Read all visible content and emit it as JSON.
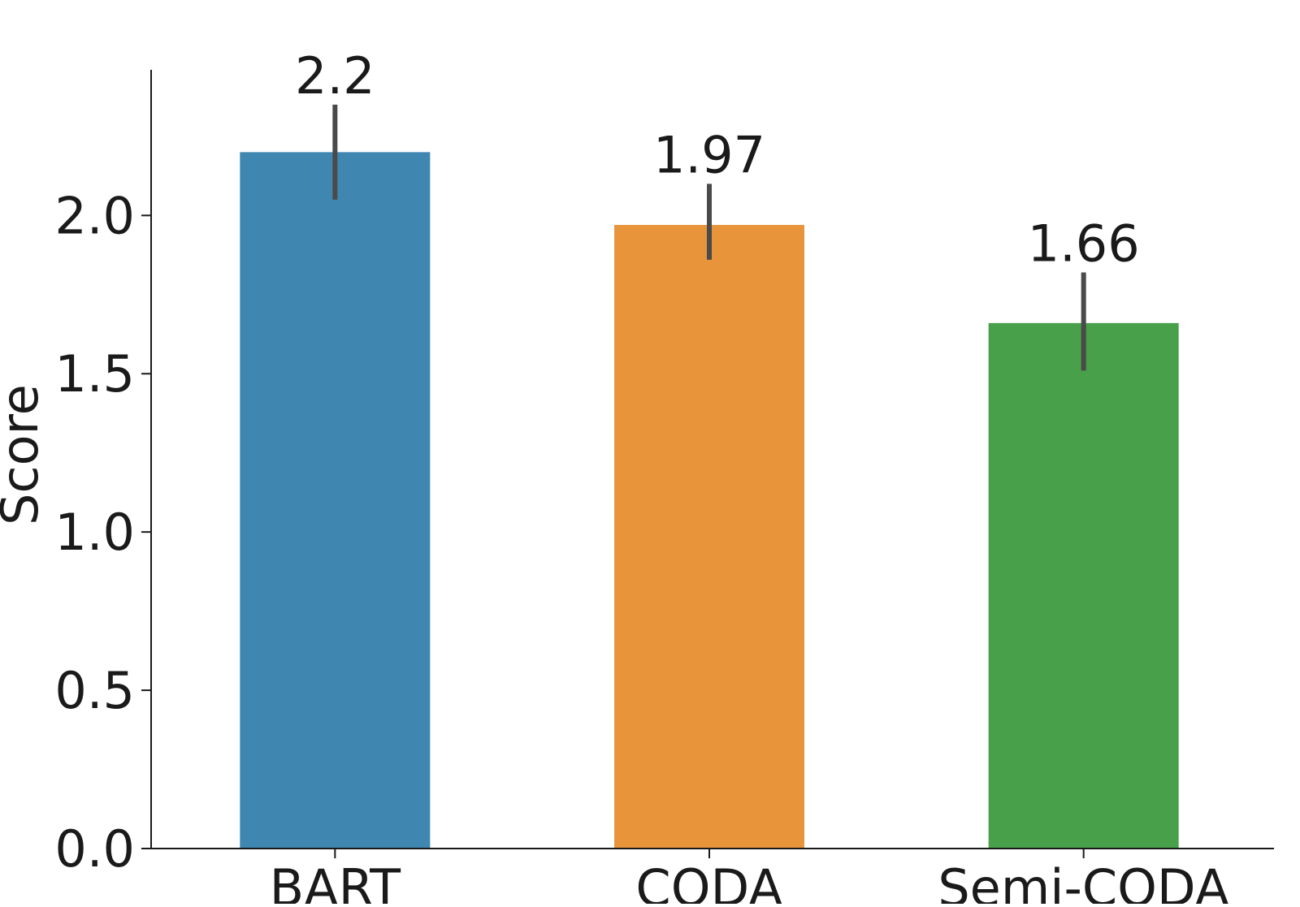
{
  "chart_data": {
    "type": "bar",
    "title": "",
    "xlabel": "",
    "ylabel": "Score",
    "ylim": [
      0,
      2.46
    ],
    "yticks": [
      0.0,
      0.5,
      1.0,
      1.5,
      2.0
    ],
    "ytick_labels": [
      "0.0",
      "0.5",
      "1.0",
      "1.5",
      "2.0"
    ],
    "categories": [
      "BART",
      "CODA",
      "Semi-CODA"
    ],
    "values": [
      2.2,
      1.97,
      1.66
    ],
    "value_labels": [
      "2.2",
      "1.97",
      "1.66"
    ],
    "error_low": [
      2.05,
      1.86,
      1.51
    ],
    "error_high": [
      2.35,
      2.1,
      1.82
    ],
    "colors": [
      "#3f87b0",
      "#e8943a",
      "#48a04a"
    ],
    "error_color": "#4a4a4a",
    "grid": false
  }
}
